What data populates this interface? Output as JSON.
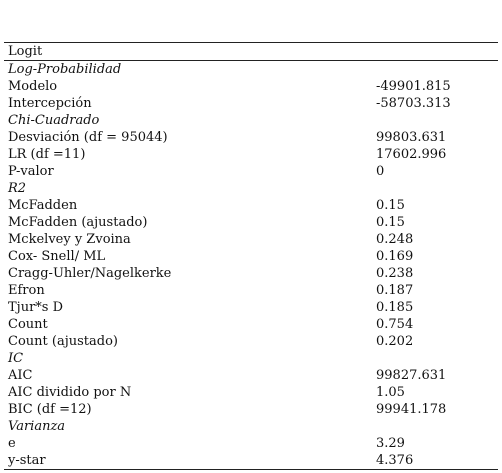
{
  "table": {
    "header": "Logit",
    "sections": [
      {
        "title": "Log-Probabilidad",
        "rows": [
          {
            "label": "Modelo",
            "value": "-49901.815"
          },
          {
            "label": "Intercepción",
            "value": "-58703.313"
          }
        ]
      },
      {
        "title": "Chi-Cuadrado",
        "rows": [
          {
            "label": "Desviación (df = 95044)",
            "value": "99803.631"
          },
          {
            "label": "LR (df =11)",
            "value": "17602.996"
          },
          {
            "label": "P-valor",
            "value": "0"
          }
        ]
      },
      {
        "title": "R2",
        "rows": [
          {
            "label": "McFadden",
            "value": "0.15"
          },
          {
            "label": "McFadden (ajustado)",
            "value": "0.15"
          },
          {
            "label": "Mckelvey y Zvoina",
            "value": "0.248"
          },
          {
            "label": "Cox- Snell/ ML",
            "value": "0.169"
          },
          {
            "label": "Cragg-Uhler/Nagelkerke",
            "value": "0.238"
          },
          {
            "label": "Efron",
            "value": "0.187"
          },
          {
            "label": "Tjur*s D",
            "value": "0.185"
          },
          {
            "label": "Count",
            "value": "0.754"
          },
          {
            "label": "Count (ajustado)",
            "value": "0.202"
          }
        ]
      },
      {
        "title": "IC",
        "rows": [
          {
            "label": "AIC",
            "value": "99827.631"
          },
          {
            "label": "AIC dividido por N",
            "value": "1.05"
          },
          {
            "label": "BIC (df =12)",
            "value": "99941.178"
          }
        ]
      },
      {
        "title": "Varianza",
        "rows": [
          {
            "label": "e",
            "value": "3.29"
          },
          {
            "label": "y-star",
            "value": "4.376"
          }
        ]
      }
    ]
  }
}
